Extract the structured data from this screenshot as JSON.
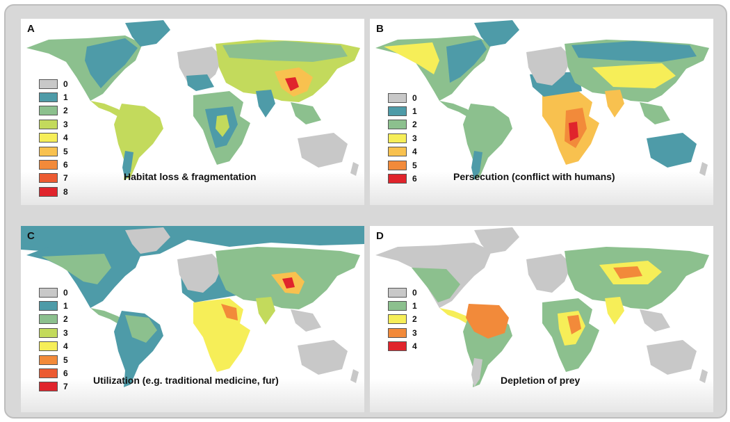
{
  "colors": [
    "#c8c8c8",
    "#4e9ba8",
    "#8cc08e",
    "#c3da5c",
    "#f6ee58",
    "#f8c14f",
    "#f28a3a",
    "#ec5b32",
    "#e0242c"
  ],
  "colors_b": [
    "#c8c8c8",
    "#4e9ba8",
    "#8cc08e",
    "#f6ee58",
    "#f8c14f",
    "#f28a3a",
    "#e0242c"
  ],
  "colors_d": [
    "#c8c8c8",
    "#8cc08e",
    "#f6ee58",
    "#f28a3a",
    "#e0242c"
  ],
  "panels": {
    "a": {
      "letter": "A",
      "caption": "Habitat loss & fragmentation",
      "legend": [
        "0",
        "1",
        "2",
        "3",
        "4",
        "5",
        "6",
        "7",
        "8"
      ]
    },
    "b": {
      "letter": "B",
      "caption": "Persecution (conflict with humans)",
      "legend": [
        "0",
        "1",
        "2",
        "3",
        "4",
        "5",
        "6"
      ]
    },
    "c": {
      "letter": "C",
      "caption": "Utilization (e.g. traditional medicine, fur)",
      "legend": [
        "0",
        "1",
        "2",
        "3",
        "4",
        "5",
        "6",
        "7"
      ]
    },
    "d": {
      "letter": "D",
      "caption": "Depletion of prey",
      "legend": [
        "0",
        "1",
        "2",
        "3",
        "4"
      ]
    }
  }
}
